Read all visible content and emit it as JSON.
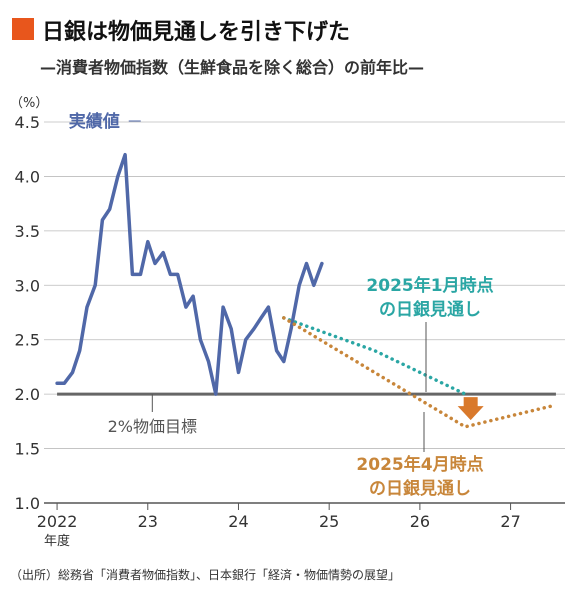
{
  "title": "日銀は物価見通しを引き下げた",
  "subtitle": "—消費者物価指数（生鮮食品を除く総合）の前年比—",
  "source": "（出所）総務省「消費者物価指数」、日本銀行「経済・物価情勢の展望」",
  "colors": {
    "title_mark": "#e8561c",
    "actual": "#5068a8",
    "jan_outlook": "#2aa6a4",
    "apr_outlook": "#c8863a",
    "target_line": "#666666",
    "arrow": "#d9792b"
  },
  "chart_data": {
    "type": "line",
    "ylabel": "（%）",
    "ylim": [
      1.0,
      4.5
    ],
    "yticks": [
      "1.0",
      "1.5",
      "2.0",
      "2.5",
      "3.0",
      "3.5",
      "4.0",
      "4.5"
    ],
    "xlim": [
      2021.9,
      2027.6
    ],
    "xticks": [
      {
        "value": 2022.0,
        "label": "2022"
      },
      {
        "value": 2023.0,
        "label": "23"
      },
      {
        "value": 2024.0,
        "label": "24"
      },
      {
        "value": 2025.0,
        "label": "25"
      },
      {
        "value": 2026.0,
        "label": "26"
      },
      {
        "value": 2027.0,
        "label": "27"
      }
    ],
    "x_unit_label": "年度",
    "series": [
      {
        "name": "実績値",
        "style": "solid",
        "points": [
          [
            2022.0,
            2.1
          ],
          [
            2022.08,
            2.1
          ],
          [
            2022.17,
            2.2
          ],
          [
            2022.25,
            2.4
          ],
          [
            2022.33,
            2.8
          ],
          [
            2022.42,
            3.0
          ],
          [
            2022.5,
            3.6
          ],
          [
            2022.58,
            3.7
          ],
          [
            2022.67,
            4.0
          ],
          [
            2022.75,
            4.2
          ],
          [
            2022.83,
            3.1
          ],
          [
            2022.92,
            3.1
          ],
          [
            2023.0,
            3.4
          ],
          [
            2023.08,
            3.2
          ],
          [
            2023.17,
            3.3
          ],
          [
            2023.25,
            3.1
          ],
          [
            2023.33,
            3.1
          ],
          [
            2023.42,
            2.8
          ],
          [
            2023.5,
            2.9
          ],
          [
            2023.58,
            2.5
          ],
          [
            2023.67,
            2.3
          ],
          [
            2023.75,
            2.0
          ],
          [
            2023.83,
            2.8
          ],
          [
            2023.92,
            2.6
          ],
          [
            2024.0,
            2.2
          ],
          [
            2024.08,
            2.5
          ],
          [
            2024.17,
            2.6
          ],
          [
            2024.25,
            2.7
          ],
          [
            2024.33,
            2.8
          ],
          [
            2024.42,
            2.4
          ],
          [
            2024.5,
            2.3
          ],
          [
            2024.58,
            2.6
          ],
          [
            2024.67,
            3.0
          ],
          [
            2024.75,
            3.2
          ],
          [
            2024.83,
            3.0
          ],
          [
            2024.92,
            3.2
          ]
        ]
      },
      {
        "name": "2025年1月時点の日銀見通し",
        "style": "dotted",
        "points": [
          [
            2024.5,
            2.7
          ],
          [
            2025.5,
            2.4
          ],
          [
            2026.5,
            2.0
          ]
        ]
      },
      {
        "name": "2025年4月時点の日銀見通し",
        "style": "dotted",
        "points": [
          [
            2024.5,
            2.7
          ],
          [
            2025.5,
            2.2
          ],
          [
            2026.5,
            1.7
          ],
          [
            2027.5,
            1.9
          ]
        ]
      }
    ],
    "reference_line": {
      "label": "2%物価目標",
      "y": 2.0
    }
  }
}
